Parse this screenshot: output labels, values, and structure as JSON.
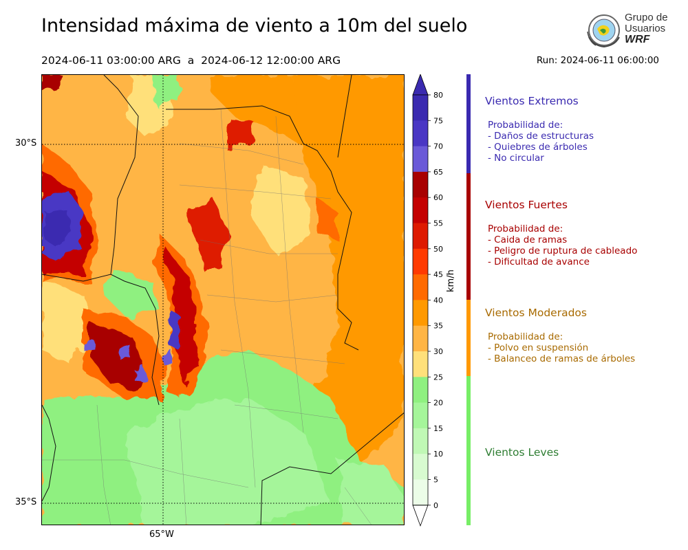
{
  "header": {
    "title": "Intensidad máxima de viento a 10m del suelo",
    "period_start": "2024-06-11 03:00:00 ARG",
    "period_sep": "a",
    "period_end": "2024-06-12 12:00:00 ARG",
    "run": "Run: 2024-06-11 06:00:00"
  },
  "logo": {
    "line1": "Grupo de",
    "line2": "Usuarios",
    "line3": "WRF"
  },
  "map": {
    "lat_labels": [
      "30°S",
      "35°S"
    ],
    "lon_labels": [
      "65°W"
    ],
    "gridlines": "dotted"
  },
  "colorbar": {
    "unit": "km/h",
    "ticks": [
      "80",
      "75",
      "70",
      "65",
      "60",
      "55",
      "50",
      "45",
      "40",
      "35",
      "30",
      "25",
      "20",
      "15",
      "10",
      "5",
      "0"
    ],
    "colors": [
      "#3a2ab0",
      "#4a37c4",
      "#6b5ad8",
      "#a80000",
      "#c40000",
      "#de1a00",
      "#ff3a00",
      "#ff6a00",
      "#ff9900",
      "#ffb545",
      "#ffe07a",
      "#8ff080",
      "#a5f59a",
      "#c0f8b5",
      "#d8fbd0",
      "#ecfde8"
    ],
    "extend_top_color": "#3a2ab0",
    "extend_bottom_color": "#ffffff"
  },
  "categories": [
    {
      "title": "Vientos Extremos",
      "color": "#3a2ab0",
      "subtitle": "Probabilidad de:",
      "items": [
        "- Daños de estructuras",
        "- Quiebres de árboles",
        "- No circular"
      ]
    },
    {
      "title": "Vientos Fuertes",
      "color": "#a80000",
      "subtitle": "Probabilidad de:",
      "items": [
        "- Caida de ramas",
        "- Peligro de ruptura de cableado",
        "- Dificultad de avance"
      ]
    },
    {
      "title": "Vientos Moderados",
      "color": "#a86a00",
      "subtitle": "Probabilidad de:",
      "items": [
        "- Polvo en suspensión",
        "- Balanceo de ramas de árboles"
      ]
    },
    {
      "title": "Vientos Leves",
      "color": "#2e7d32",
      "subtitle": "",
      "items": []
    }
  ],
  "strip_colors": [
    "#3a2ab0",
    "#a80000",
    "#ff9900",
    "#77ee66"
  ]
}
